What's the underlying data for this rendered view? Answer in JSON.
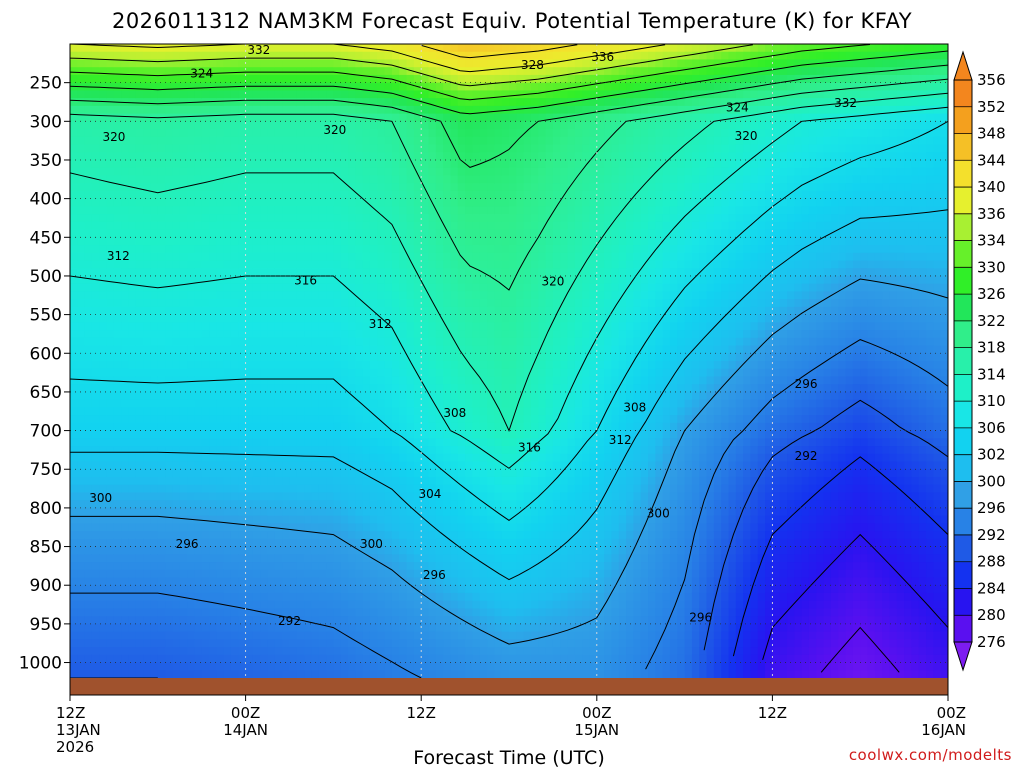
{
  "chart_data": {
    "type": "heatmap",
    "title": "2026011312 NAM3KM Forecast Equiv. Potential Temperature (K) for KFAY",
    "xlabel": "Forecast Time (UTC)",
    "ylabel": "",
    "credit": "coolwx.com/modelts",
    "y_ticks": [
      "250",
      "300",
      "350",
      "400",
      "450",
      "500",
      "550",
      "600",
      "650",
      "700",
      "750",
      "800",
      "850",
      "900",
      "950",
      "1000"
    ],
    "y_values": [
      250,
      300,
      350,
      400,
      450,
      500,
      550,
      600,
      650,
      700,
      750,
      800,
      850,
      900,
      950,
      1000
    ],
    "ylim": [
      200,
      1020
    ],
    "x_ticks": [
      {
        "hour": 0,
        "line1": "12Z",
        "line2": "13JAN",
        "line3": "2026"
      },
      {
        "hour": 12,
        "line1": "00Z",
        "line2": "14JAN",
        "line3": ""
      },
      {
        "hour": 24,
        "line1": "12Z",
        "line2": "",
        "line3": ""
      },
      {
        "hour": 36,
        "line1": "00Z",
        "line2": "15JAN",
        "line3": ""
      },
      {
        "hour": 48,
        "line1": "12Z",
        "line2": "",
        "line3": ""
      },
      {
        "hour": 60,
        "line1": "00Z",
        "line2": "16JAN",
        "line3": ""
      }
    ],
    "xlim": [
      0,
      60
    ],
    "colorbar": {
      "levels": [
        276,
        280,
        284,
        288,
        292,
        296,
        300,
        302,
        306,
        310,
        314,
        318,
        322,
        326,
        330,
        334,
        336,
        340,
        344,
        348,
        352,
        356
      ],
      "colors": [
        "#7d1cf0",
        "#5a10f0",
        "#2814f0",
        "#1432f0",
        "#1f5ae6",
        "#2882e6",
        "#30a0e6",
        "#1ebeef",
        "#12d2f0",
        "#19e6e6",
        "#1ef0c8",
        "#28f0aa",
        "#30ee8a",
        "#22e65a",
        "#30ef28",
        "#66f02a",
        "#a8f032",
        "#e6f02e",
        "#f4e02c",
        "#f5c026",
        "#f4a01e",
        "#f3861e"
      ],
      "range": [
        274,
        358
      ]
    },
    "series": [
      {
        "name": "upper_band",
        "x": [
          0,
          6,
          12,
          18,
          22,
          27,
          32,
          38,
          44,
          50,
          55,
          60
        ],
        "values": [
          318,
          319,
          318,
          318,
          320,
          326,
          324,
          320,
          316,
          312,
          310,
          308
        ]
      },
      {
        "name": "700hPa_band",
        "x": [
          0,
          6,
          12,
          18,
          22,
          30,
          36,
          42,
          48,
          54,
          60
        ],
        "values": [
          306,
          306,
          306,
          306,
          308,
          316,
          308,
          300,
          294,
          290,
          294
        ]
      },
      {
        "name": "surface_band",
        "x": [
          0,
          6,
          12,
          18,
          24,
          30,
          36,
          42,
          44,
          48,
          54,
          60
        ],
        "values": [
          292,
          292,
          293,
          294,
          296,
          298,
          298,
          294,
          290,
          282,
          278,
          282
        ]
      }
    ],
    "contour_labels": [
      {
        "value": "332",
        "x": 12.9,
        "p": 208
      },
      {
        "value": "328",
        "x": 31.6,
        "p": 227
      },
      {
        "value": "336",
        "x": 36.4,
        "p": 217
      },
      {
        "value": "324",
        "x": 9.0,
        "p": 238
      },
      {
        "value": "324",
        "x": 45.6,
        "p": 282
      },
      {
        "value": "332",
        "x": 53.0,
        "p": 276
      },
      {
        "value": "320",
        "x": 3.0,
        "p": 320
      },
      {
        "value": "320",
        "x": 18.1,
        "p": 311
      },
      {
        "value": "320",
        "x": 46.2,
        "p": 319
      },
      {
        "value": "320",
        "x": 33.0,
        "p": 507
      },
      {
        "value": "312",
        "x": 3.3,
        "p": 474
      },
      {
        "value": "316",
        "x": 16.1,
        "p": 506
      },
      {
        "value": "312",
        "x": 21.2,
        "p": 562
      },
      {
        "value": "308",
        "x": 26.3,
        "p": 677
      },
      {
        "value": "316",
        "x": 31.4,
        "p": 722
      },
      {
        "value": "308",
        "x": 38.6,
        "p": 670
      },
      {
        "value": "312",
        "x": 37.6,
        "p": 712
      },
      {
        "value": "296",
        "x": 50.3,
        "p": 640
      },
      {
        "value": "292",
        "x": 50.3,
        "p": 733
      },
      {
        "value": "304",
        "x": 24.6,
        "p": 782
      },
      {
        "value": "300",
        "x": 2.1,
        "p": 787
      },
      {
        "value": "300",
        "x": 20.6,
        "p": 847
      },
      {
        "value": "300",
        "x": 40.2,
        "p": 807
      },
      {
        "value": "296",
        "x": 8.0,
        "p": 847
      },
      {
        "value": "296",
        "x": 24.9,
        "p": 887
      },
      {
        "value": "296",
        "x": 43.1,
        "p": 942
      },
      {
        "value": "292",
        "x": 15.0,
        "p": 946
      }
    ]
  }
}
